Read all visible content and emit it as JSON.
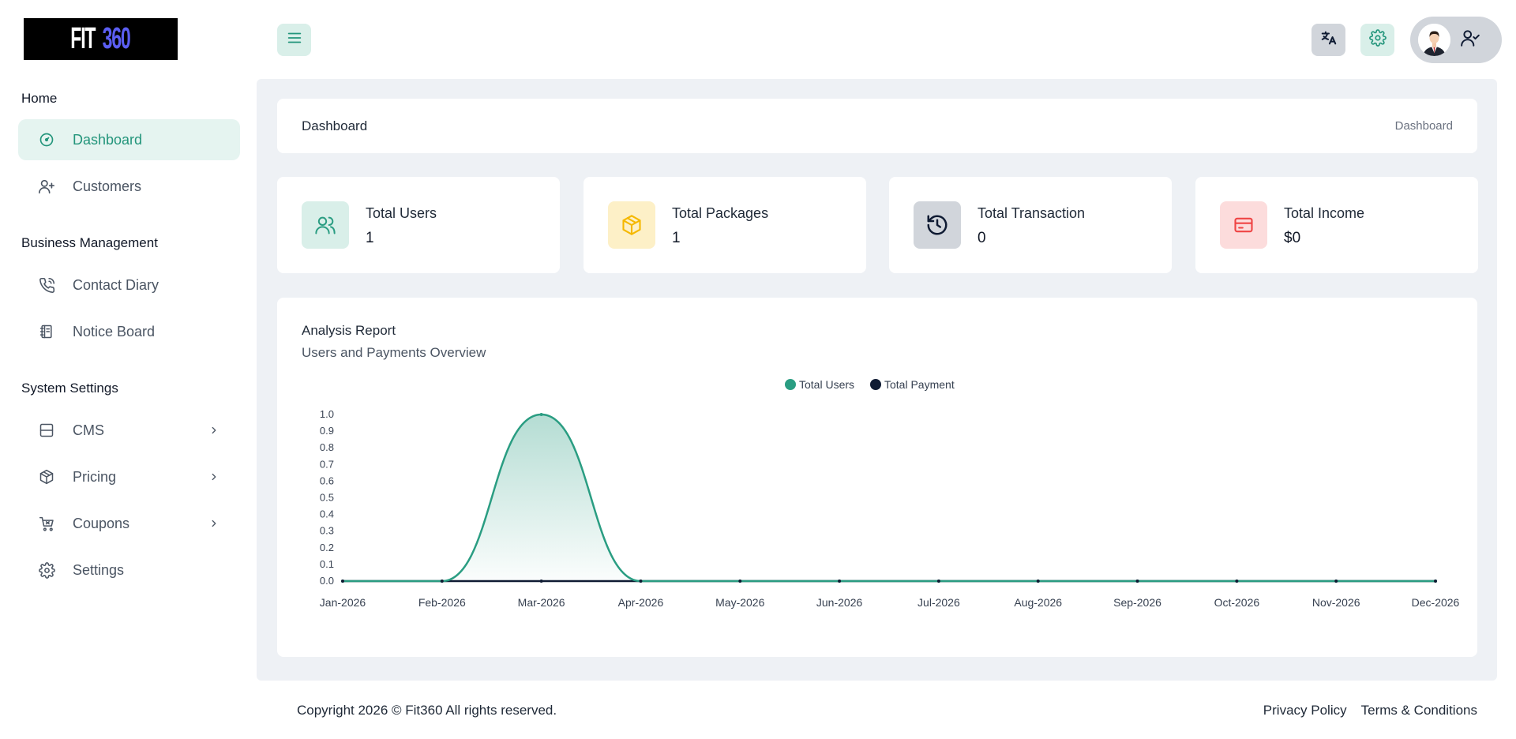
{
  "brand": {
    "logo_white": "FIT",
    "logo_blue": "360"
  },
  "sidebar": {
    "sections": [
      {
        "title": "Home"
      },
      {
        "title": "Business Management"
      },
      {
        "title": "System Settings"
      }
    ],
    "items": [
      {
        "label": "Dashboard",
        "icon": "gauge-icon",
        "active": true
      },
      {
        "label": "Customers",
        "icon": "user-plus-icon"
      },
      {
        "label": "Contact Diary",
        "icon": "phone-icon"
      },
      {
        "label": "Notice Board",
        "icon": "notebook-icon"
      },
      {
        "label": "CMS",
        "icon": "layout-icon",
        "has_children": true
      },
      {
        "label": "Pricing",
        "icon": "package-icon",
        "has_children": true
      },
      {
        "label": "Coupons",
        "icon": "cart-icon",
        "has_children": true
      },
      {
        "label": "Settings",
        "icon": "gear-icon"
      }
    ]
  },
  "header": {
    "title": "Dashboard",
    "breadcrumb": "Dashboard"
  },
  "stats": [
    {
      "label": "Total Users",
      "value": "1",
      "icon": "users-icon",
      "color": "#2a9d82",
      "bg": "#d9efe9"
    },
    {
      "label": "Total Packages",
      "value": "1",
      "icon": "box-icon",
      "color": "#f5b800",
      "bg": "#fdf0c7"
    },
    {
      "label": "Total Transaction",
      "value": "0",
      "icon": "history-icon",
      "color": "#0f1b33",
      "bg": "#d1d5db"
    },
    {
      "label": "Total Income",
      "value": "$0",
      "icon": "credit-card-icon",
      "color": "#ef4444",
      "bg": "#fcdcdc"
    }
  ],
  "report": {
    "title": "Analysis Report",
    "subtitle": "Users and Payments Overview"
  },
  "chart_data": {
    "type": "area",
    "categories": [
      "Jan-2026",
      "Feb-2026",
      "Mar-2026",
      "Apr-2026",
      "May-2026",
      "Jun-2026",
      "Jul-2026",
      "Aug-2026",
      "Sep-2026",
      "Oct-2026",
      "Nov-2026",
      "Dec-2026"
    ],
    "series": [
      {
        "name": "Total Users",
        "values": [
          0,
          0,
          1,
          0,
          0,
          0,
          0,
          0,
          0,
          0,
          0,
          0
        ],
        "color": "#2a9d82"
      },
      {
        "name": "Total Payment",
        "values": [
          0,
          0,
          0,
          0,
          0,
          0,
          0,
          0,
          0,
          0,
          0,
          0
        ],
        "color": "#0f1b33"
      }
    ],
    "ylim": [
      0,
      1
    ],
    "yticks": [
      "0.0",
      "0.1",
      "0.2",
      "0.3",
      "0.4",
      "0.5",
      "0.6",
      "0.7",
      "0.8",
      "0.9",
      "1.0"
    ],
    "legend": "top-center",
    "grid": false
  },
  "footer": {
    "copyright": "Copyright 2026 © Fit360 All rights reserved.",
    "links": [
      "Privacy Policy",
      "Terms & Conditions"
    ]
  }
}
